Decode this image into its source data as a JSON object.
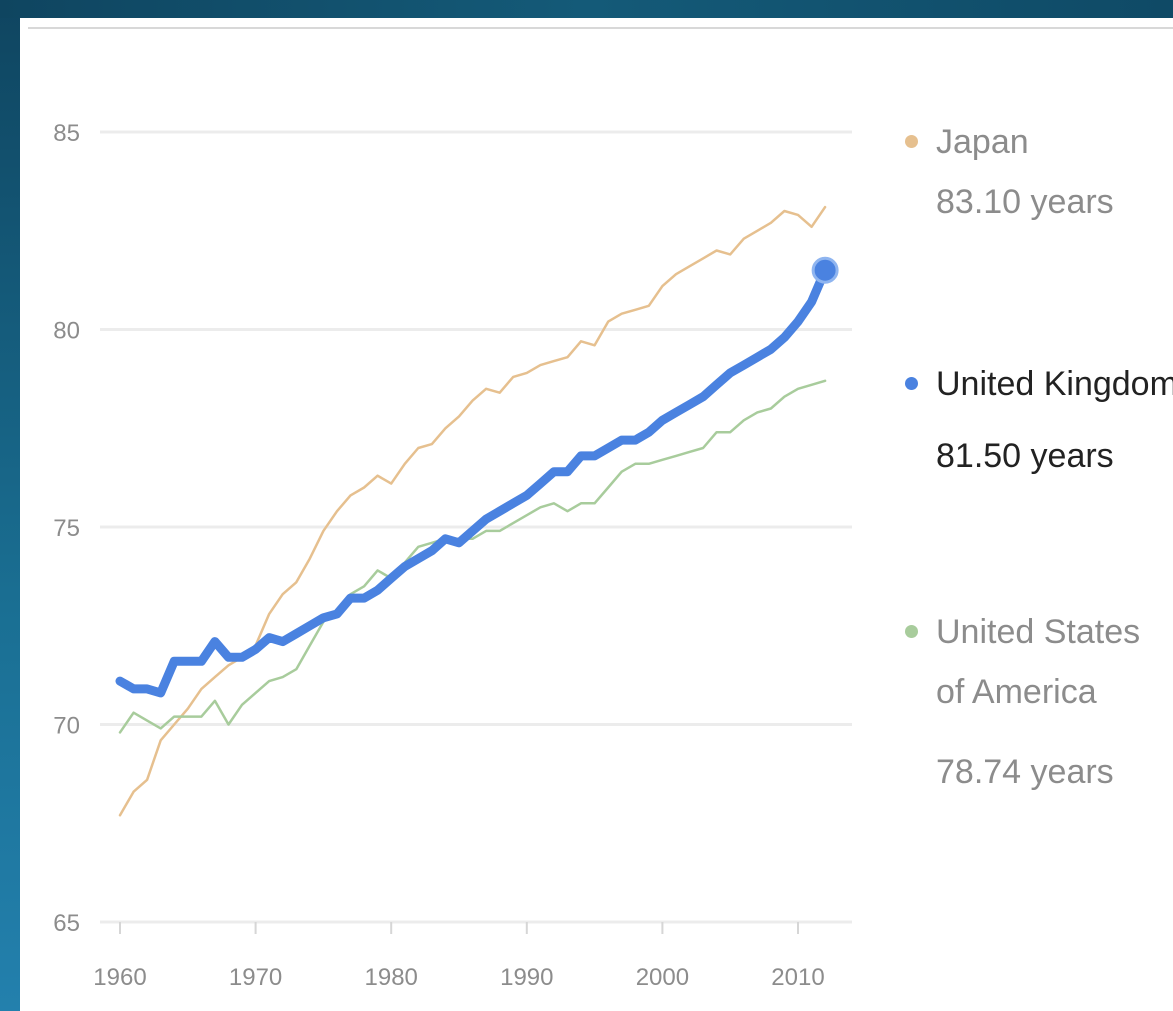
{
  "chart_data": {
    "type": "line",
    "title": "",
    "xlabel": "",
    "ylabel": "",
    "xlim": [
      1959,
      2014
    ],
    "ylim": [
      65,
      85
    ],
    "x_ticks": [
      "1960",
      "1970",
      "1980",
      "1990",
      "2000",
      "2010"
    ],
    "y_ticks": [
      "65",
      "70",
      "75",
      "80",
      "85"
    ],
    "grid": true,
    "legend_position": "right",
    "series": [
      {
        "name": "Japan",
        "value_label": "83.10 years",
        "color": "#e6c08f",
        "highlighted": false,
        "x": [
          1960,
          1961,
          1962,
          1963,
          1964,
          1965,
          1966,
          1967,
          1968,
          1969,
          1970,
          1971,
          1972,
          1973,
          1974,
          1975,
          1976,
          1977,
          1978,
          1979,
          1980,
          1981,
          1982,
          1983,
          1984,
          1985,
          1986,
          1987,
          1988,
          1989,
          1990,
          1991,
          1992,
          1993,
          1994,
          1995,
          1996,
          1997,
          1998,
          1999,
          2000,
          2001,
          2002,
          2003,
          2004,
          2005,
          2006,
          2007,
          2008,
          2009,
          2010,
          2011,
          2012
        ],
        "values": [
          67.7,
          68.3,
          68.6,
          69.6,
          70.0,
          70.4,
          70.9,
          71.2,
          71.5,
          71.7,
          72.0,
          72.8,
          73.3,
          73.6,
          74.2,
          74.9,
          75.4,
          75.8,
          76.0,
          76.3,
          76.1,
          76.6,
          77.0,
          77.1,
          77.5,
          77.8,
          78.2,
          78.5,
          78.4,
          78.8,
          78.9,
          79.1,
          79.2,
          79.3,
          79.7,
          79.6,
          80.2,
          80.4,
          80.5,
          80.6,
          81.1,
          81.4,
          81.6,
          81.8,
          82.0,
          81.9,
          82.3,
          82.5,
          82.7,
          83.0,
          82.9,
          82.6,
          83.1
        ]
      },
      {
        "name": "United States of America",
        "value_label": "78.74 years",
        "color": "#a8cc9c",
        "highlighted": false,
        "x": [
          1960,
          1961,
          1962,
          1963,
          1964,
          1965,
          1966,
          1967,
          1968,
          1969,
          1970,
          1971,
          1972,
          1973,
          1974,
          1975,
          1976,
          1977,
          1978,
          1979,
          1980,
          1981,
          1982,
          1983,
          1984,
          1985,
          1986,
          1987,
          1988,
          1989,
          1990,
          1991,
          1992,
          1993,
          1994,
          1995,
          1996,
          1997,
          1998,
          1999,
          2000,
          2001,
          2002,
          2003,
          2004,
          2005,
          2006,
          2007,
          2008,
          2009,
          2010,
          2011,
          2012
        ],
        "values": [
          69.8,
          70.3,
          70.1,
          69.9,
          70.2,
          70.2,
          70.2,
          70.6,
          70.0,
          70.5,
          70.8,
          71.1,
          71.2,
          71.4,
          72.0,
          72.6,
          72.9,
          73.3,
          73.5,
          73.9,
          73.7,
          74.1,
          74.5,
          74.6,
          74.7,
          74.7,
          74.7,
          74.9,
          74.9,
          75.1,
          75.3,
          75.5,
          75.6,
          75.4,
          75.6,
          75.6,
          76.0,
          76.4,
          76.6,
          76.6,
          76.7,
          76.8,
          76.9,
          77.0,
          77.4,
          77.4,
          77.7,
          77.9,
          78.0,
          78.3,
          78.5,
          78.6,
          78.7
        ]
      },
      {
        "name": "United Kingdom",
        "value_label": "81.50 years",
        "color": "#4a82e0",
        "highlighted": true,
        "x": [
          1960,
          1961,
          1962,
          1963,
          1964,
          1965,
          1966,
          1967,
          1968,
          1969,
          1970,
          1971,
          1972,
          1973,
          1974,
          1975,
          1976,
          1977,
          1978,
          1979,
          1980,
          1981,
          1982,
          1983,
          1984,
          1985,
          1986,
          1987,
          1988,
          1989,
          1990,
          1991,
          1992,
          1993,
          1994,
          1995,
          1996,
          1997,
          1998,
          1999,
          2000,
          2001,
          2002,
          2003,
          2004,
          2005,
          2006,
          2007,
          2008,
          2009,
          2010,
          2011,
          2012
        ],
        "values": [
          71.1,
          70.9,
          70.9,
          70.8,
          71.6,
          71.6,
          71.6,
          72.1,
          71.7,
          71.7,
          71.9,
          72.2,
          72.1,
          72.3,
          72.5,
          72.7,
          72.8,
          73.2,
          73.2,
          73.4,
          73.7,
          74.0,
          74.2,
          74.4,
          74.7,
          74.6,
          74.9,
          75.2,
          75.4,
          75.6,
          75.8,
          76.1,
          76.4,
          76.4,
          76.8,
          76.8,
          77.0,
          77.2,
          77.2,
          77.4,
          77.7,
          77.9,
          78.1,
          78.3,
          78.6,
          78.9,
          79.1,
          79.3,
          79.5,
          79.8,
          80.2,
          80.7,
          81.5
        ]
      }
    ]
  }
}
